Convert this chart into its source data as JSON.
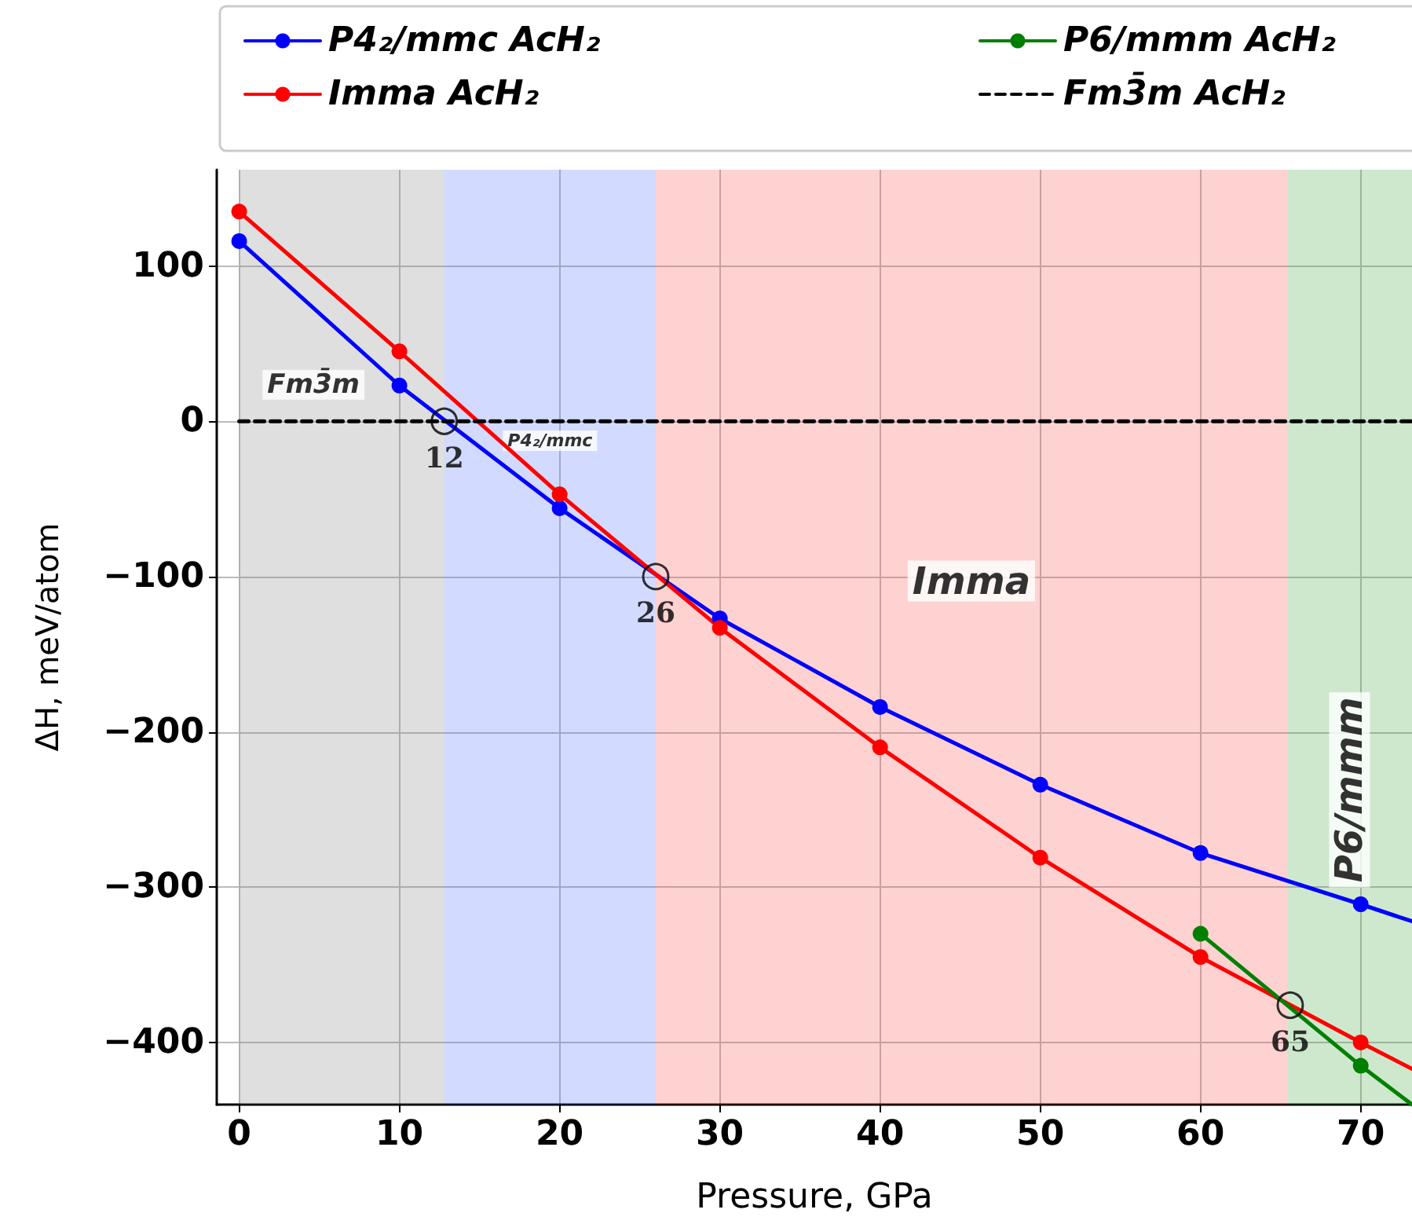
{
  "chart_data": {
    "type": "line",
    "xlabel": "Pressure, GPa",
    "ylabel": "ΔH, meV/atom",
    "xlim": [
      -1.4,
      73.2
    ],
    "ylim": [
      -440,
      162
    ],
    "xticks": [
      0,
      10,
      20,
      30,
      40,
      50,
      60,
      70
    ],
    "yticks": [
      -400,
      -300,
      -200,
      -100,
      0,
      100
    ],
    "grid": true,
    "legend": "top",
    "marker": "circle",
    "series": [
      {
        "name": "P4₂/mmc AcH₂",
        "color": "#0000ff",
        "x": [
          0,
          10,
          20,
          30,
          40,
          50,
          60,
          70,
          73.2
        ],
        "values": [
          116,
          23,
          -56,
          -127,
          -184,
          -234,
          -278,
          -311,
          -322
        ]
      },
      {
        "name": "Imma AcH₂",
        "color": "#ff0000",
        "x": [
          0,
          10,
          20,
          30,
          40,
          50,
          60,
          70,
          73.2
        ],
        "values": [
          135,
          45,
          -47,
          -133,
          -210,
          -281,
          -345,
          -400,
          -417
        ]
      },
      {
        "name": "P6/mmm AcH₂",
        "color": "#008000",
        "x": [
          60,
          70,
          73.2
        ],
        "values": [
          -330,
          -415,
          -440
        ]
      },
      {
        "name": "Fm3̄m AcH₂",
        "color": "#000000",
        "x": [
          0,
          73.2
        ],
        "values": [
          0,
          0
        ],
        "line_style": "dashed",
        "marker": "none"
      }
    ],
    "bands": [
      {
        "axis": "x",
        "from": 0,
        "to": 12.8,
        "label": "Fm3̄m",
        "color": "#808080"
      },
      {
        "axis": "x",
        "from": 12.8,
        "to": 26,
        "label": "P4₂/mmc",
        "color": "#4d6bff"
      },
      {
        "axis": "x",
        "from": 26,
        "to": 65.4,
        "label": "Imma",
        "color": "#ff4d4d"
      },
      {
        "axis": "x",
        "from": 65.4,
        "to": 73.2,
        "label": "P6/mmm",
        "color": "#3aa33a"
      }
    ],
    "annotations": [
      {
        "text": "12",
        "x": 12.8,
        "y": 0
      },
      {
        "text": "26",
        "x": 26,
        "y": -100
      },
      {
        "text": "65",
        "x": 65.6,
        "y": -376
      }
    ]
  }
}
